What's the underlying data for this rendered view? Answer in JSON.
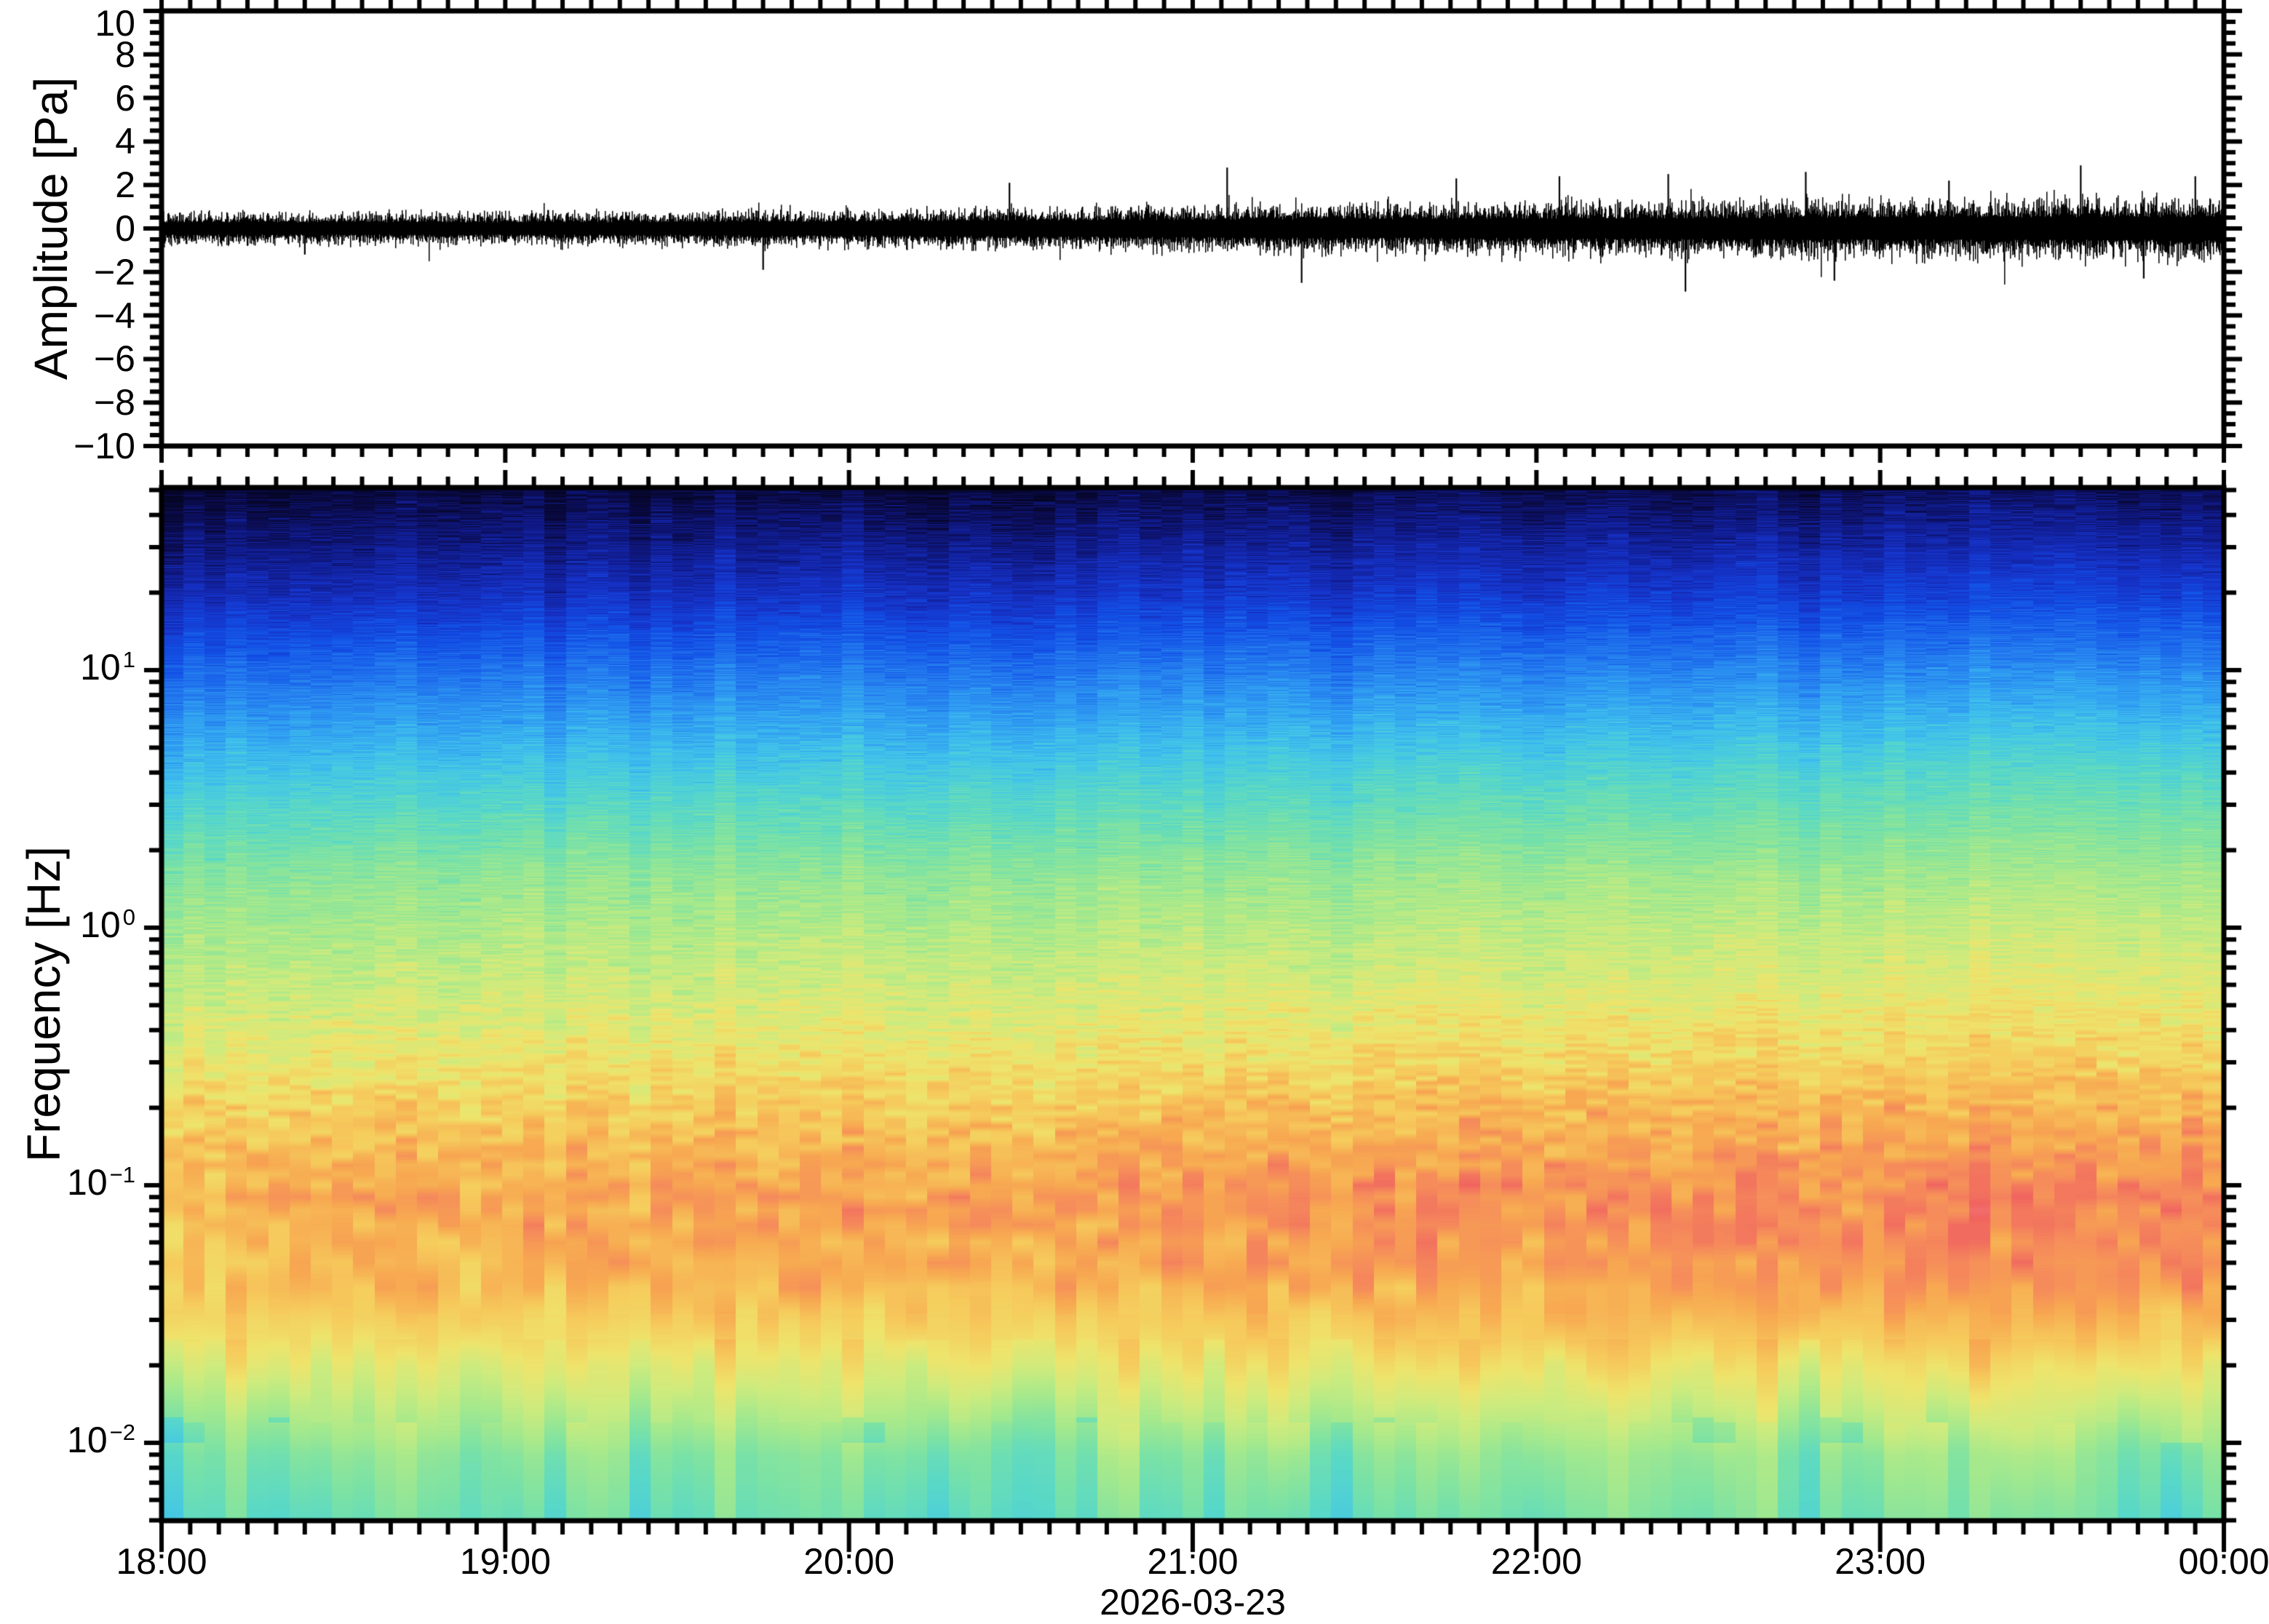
{
  "figure": {
    "background": "#ffffff",
    "frame_color": "#000000",
    "waveform_panel": {
      "ylabel": "Amplitude [Pa]",
      "ylim_pa": [
        -10,
        10
      ],
      "ytick_values": [
        10,
        8,
        6,
        4,
        2,
        0,
        -2,
        -4,
        -6,
        -8,
        -10
      ],
      "ytick_labels": [
        "10",
        "8",
        "6",
        "4",
        "2",
        "0",
        "−2",
        "−4",
        "−6",
        "−8",
        "−10"
      ],
      "yminor_step_pa": 0.5,
      "trace_color": "#000000"
    },
    "spectrogram_panel": {
      "ylabel": "Frequency [Hz]",
      "flim_hz": [
        0.005,
        50
      ],
      "yscale": "log",
      "ytick_labels": [
        {
          "prefix": "10",
          "exponent": "1",
          "value_hz": 10
        },
        {
          "prefix": "10",
          "exponent": "0",
          "value_hz": 1
        },
        {
          "prefix": "10",
          "exponent": "−1",
          "value_hz": 0.1
        },
        {
          "prefix": "10",
          "exponent": "−2",
          "value_hz": 0.01
        }
      ]
    },
    "x_axis": {
      "tick_labels": [
        "18:00",
        "19:00",
        "20:00",
        "21:00",
        "22:00",
        "23:00",
        "00:00"
      ],
      "tick_hours": [
        18,
        19,
        20,
        21,
        22,
        23,
        24
      ],
      "minor_step_minutes": 5,
      "date_label": "2026-03-23"
    }
  },
  "chart_data": [
    {
      "type": "line",
      "name": "infrasound-waveform",
      "ylabel": "Amplitude [Pa]",
      "ylim": [
        -10,
        10
      ],
      "x_start": "18:00",
      "x_end": "00:00",
      "date": "2026-03-23",
      "line_color": "#000000",
      "envelope_hours": [
        18,
        18.5,
        19,
        19.5,
        20,
        20.5,
        21,
        21.5,
        22,
        22.5,
        23,
        23.5,
        24
      ],
      "envelope_pa": [
        0.36,
        0.36,
        0.37,
        0.38,
        0.42,
        0.46,
        0.52,
        0.55,
        0.58,
        0.62,
        0.66,
        0.68,
        0.7
      ],
      "spikes": [
        {
          "time": "18:25",
          "pa": -1.2
        },
        {
          "time": "19:45",
          "pa": -1.9
        },
        {
          "time": "20:28",
          "pa": 2.1
        },
        {
          "time": "21:06",
          "pa": 2.8
        },
        {
          "time": "21:19",
          "pa": -2.5
        },
        {
          "time": "21:46",
          "pa": 2.3
        },
        {
          "time": "22:04",
          "pa": 2.4
        },
        {
          "time": "22:23",
          "pa": 2.5
        },
        {
          "time": "22:26",
          "pa": -2.9
        },
        {
          "time": "22:47",
          "pa": 2.6
        },
        {
          "time": "22:52",
          "pa": -2.4
        },
        {
          "time": "23:12",
          "pa": 2.2
        },
        {
          "time": "23:35",
          "pa": 2.9
        },
        {
          "time": "23:46",
          "pa": -2.3
        },
        {
          "time": "23:55",
          "pa": 2.4
        }
      ]
    },
    {
      "type": "heatmap",
      "name": "infrasound-spectrogram",
      "ylabel": "Frequency [Hz]",
      "yscale": "log",
      "ylim_hz": [
        0.005,
        50
      ],
      "x_start_hour": 18,
      "x_end_hour": 24,
      "time_hours": [
        18,
        18.5,
        19,
        19.5,
        20,
        20.5,
        21,
        21.5,
        22,
        22.5,
        23,
        23.5,
        24
      ],
      "freq_log10hz": [
        1.7,
        1.3,
        1.0,
        0.6,
        0.2,
        -0.2,
        -0.5,
        -0.8,
        -1.05,
        -1.35,
        -1.6,
        -1.85,
        -2.05,
        -2.3
      ],
      "value_units": "relative power (uncalibrated dB)",
      "value_range": [
        0,
        100
      ],
      "values_rel": [
        [
          3,
          3,
          4,
          4,
          4,
          4,
          5,
          5,
          5,
          5,
          6,
          6,
          6
        ],
        [
          14,
          14,
          15,
          15,
          16,
          16,
          17,
          17,
          17,
          18,
          18,
          19,
          19
        ],
        [
          26,
          26,
          27,
          27,
          28,
          28,
          29,
          29,
          29,
          30,
          30,
          31,
          31
        ],
        [
          40,
          41,
          41,
          42,
          42,
          43,
          43,
          44,
          44,
          45,
          45,
          46,
          46
        ],
        [
          54,
          54,
          55,
          55,
          55,
          56,
          56,
          56,
          57,
          57,
          57,
          58,
          58
        ],
        [
          62,
          62,
          63,
          63,
          64,
          64,
          65,
          65,
          65,
          66,
          66,
          67,
          67
        ],
        [
          68,
          69,
          69,
          70,
          70,
          71,
          71,
          72,
          72,
          73,
          73,
          74,
          74
        ],
        [
          76,
          77,
          77,
          78,
          78,
          79,
          80,
          80,
          81,
          81,
          82,
          82,
          83
        ],
        [
          80,
          81,
          81,
          82,
          83,
          83,
          84,
          85,
          85,
          86,
          87,
          87,
          88
        ],
        [
          78,
          79,
          79,
          80,
          81,
          81,
          82,
          83,
          83,
          84,
          85,
          85,
          86
        ],
        [
          71,
          71,
          72,
          72,
          73,
          73,
          74,
          74,
          75,
          75,
          76,
          76,
          77
        ],
        [
          60,
          60,
          61,
          61,
          62,
          62,
          63,
          63,
          63,
          64,
          64,
          64,
          64
        ],
        [
          52,
          53,
          52,
          53,
          53,
          54,
          54,
          54,
          55,
          55,
          54,
          55,
          55
        ],
        [
          48,
          49,
          48,
          49,
          50,
          49,
          50,
          49,
          50,
          51,
          50,
          50,
          50
        ]
      ],
      "colormap_stops": [
        [
          0.0,
          "#04041a"
        ],
        [
          0.05,
          "#0a0a46"
        ],
        [
          0.1,
          "#101b8c"
        ],
        [
          0.16,
          "#1632c8"
        ],
        [
          0.22,
          "#1250e6"
        ],
        [
          0.28,
          "#2277ee"
        ],
        [
          0.34,
          "#31a0f2"
        ],
        [
          0.4,
          "#41c4ea"
        ],
        [
          0.46,
          "#58d8c8"
        ],
        [
          0.52,
          "#7ce2a4"
        ],
        [
          0.58,
          "#a6e98c"
        ],
        [
          0.64,
          "#cfeb7d"
        ],
        [
          0.7,
          "#eee46c"
        ],
        [
          0.76,
          "#f6c95b"
        ],
        [
          0.82,
          "#f7a851"
        ],
        [
          0.87,
          "#f58a5b"
        ],
        [
          0.92,
          "#f0645f"
        ],
        [
          1.0,
          "#f9a5b4"
        ]
      ]
    }
  ]
}
